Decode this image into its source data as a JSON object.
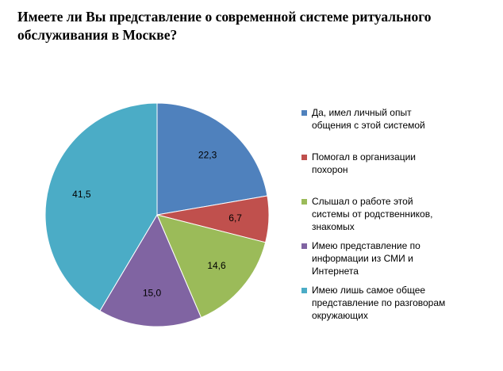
{
  "chart_data": {
    "type": "pie",
    "title": "Имеете ли Вы представление о современной системе ритуального обслуживания в Москве?",
    "legend_position": "right",
    "slices": [
      {
        "label": "Да, имел личный опыт общения с этой системой",
        "value": 22.3,
        "value_label": "22,3",
        "color": "#4F81BD"
      },
      {
        "label": "Помогал в организации похорон",
        "value": 6.7,
        "value_label": "6,7",
        "color": "#C0504D"
      },
      {
        "label": "Слышал о работе этой системы от родственников, знакомых",
        "value": 14.6,
        "value_label": "14,6",
        "color": "#9BBB59"
      },
      {
        "label": "Имею представление по информации из СМИ и Интернета",
        "value": 15.0,
        "value_label": "15,0",
        "color": "#8064A2"
      },
      {
        "label": "Имею лишь самое общее представление по разговорам окружающих",
        "value": 41.5,
        "value_label": "41,5",
        "color": "#4BACC6"
      }
    ]
  }
}
